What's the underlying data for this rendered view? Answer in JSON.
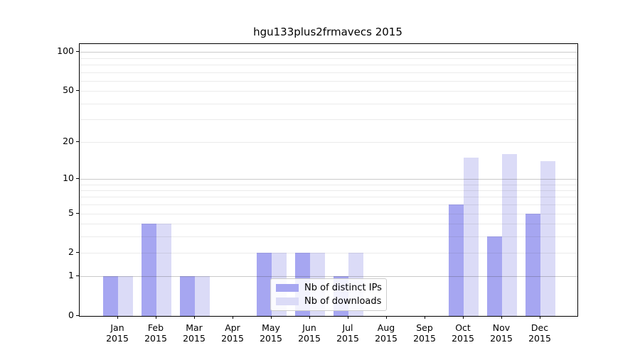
{
  "chart_data": {
    "type": "bar",
    "title": "hgu133plus2frmavecs 2015",
    "categories": [
      "Jan 2015",
      "Feb 2015",
      "Mar 2015",
      "Apr 2015",
      "May 2015",
      "Jun 2015",
      "Jul 2015",
      "Aug 2015",
      "Sep 2015",
      "Oct 2015",
      "Nov 2015",
      "Dec 2015"
    ],
    "x_tick_months": [
      "Jan",
      "Feb",
      "Mar",
      "Apr",
      "May",
      "Jun",
      "Jul",
      "Aug",
      "Sep",
      "Oct",
      "Nov",
      "Dec"
    ],
    "x_tick_year": "2015",
    "series": [
      {
        "name": "Nb of distinct IPs",
        "color": "#a6a6f1",
        "values": [
          1,
          4,
          1,
          0,
          2,
          2,
          1,
          0,
          0,
          6,
          3,
          5
        ]
      },
      {
        "name": "Nb of downloads",
        "color": "#dbdbf7",
        "values": [
          1,
          4,
          1,
          0,
          2,
          2,
          2,
          0,
          0,
          15,
          16,
          14
        ]
      }
    ],
    "yscale": "log1p",
    "ylim": [
      0,
      110
    ],
    "y_axis": {
      "tick_values": [
        0,
        1,
        2,
        5,
        10,
        20,
        50,
        100
      ],
      "tick_labels": [
        "0",
        "1",
        "2",
        "5",
        "10",
        "20",
        "50",
        "100"
      ],
      "major_grid_values": [
        1,
        10,
        100
      ],
      "minor_grid_values": [
        2,
        3,
        4,
        5,
        6,
        7,
        8,
        9,
        20,
        30,
        40,
        50,
        60,
        70,
        80,
        90
      ]
    },
    "grid": "horizontal",
    "legend_position": "lower center"
  },
  "legend": {
    "items": [
      {
        "label": "Nb of distinct IPs"
      },
      {
        "label": "Nb of downloads"
      }
    ]
  },
  "colors": {
    "distinct_ips_bar": "#a6a6f1",
    "downloads_bar": "#dbdbf7",
    "axis": "#000000",
    "legend_border": "#cccccc",
    "background": "#ffffff"
  }
}
